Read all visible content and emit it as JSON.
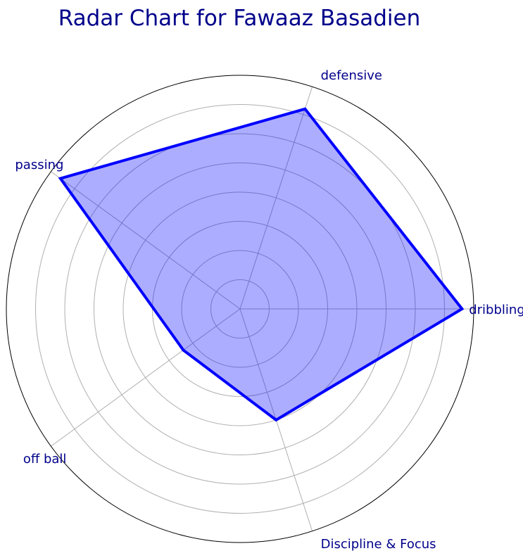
{
  "chart_data": {
    "type": "radar",
    "title": "Radar Chart for Fawaaz Basadien",
    "categories": [
      "dribbling",
      "defensive",
      "passing",
      "off ball",
      "Discipline & Focus"
    ],
    "series": [
      {
        "values": [
          0.95,
          0.9,
          0.95,
          0.3,
          0.5
        ]
      }
    ],
    "rlim": [
      0,
      1
    ],
    "rgrid_levels": 8,
    "grid": true,
    "tick_labels_shown": false
  },
  "colors": {
    "title": "#00008b",
    "labels": "#00008b",
    "line": "#0000ff",
    "fill": "#0000ff",
    "grid": "#b0b0b0",
    "frame": "#000000"
  }
}
